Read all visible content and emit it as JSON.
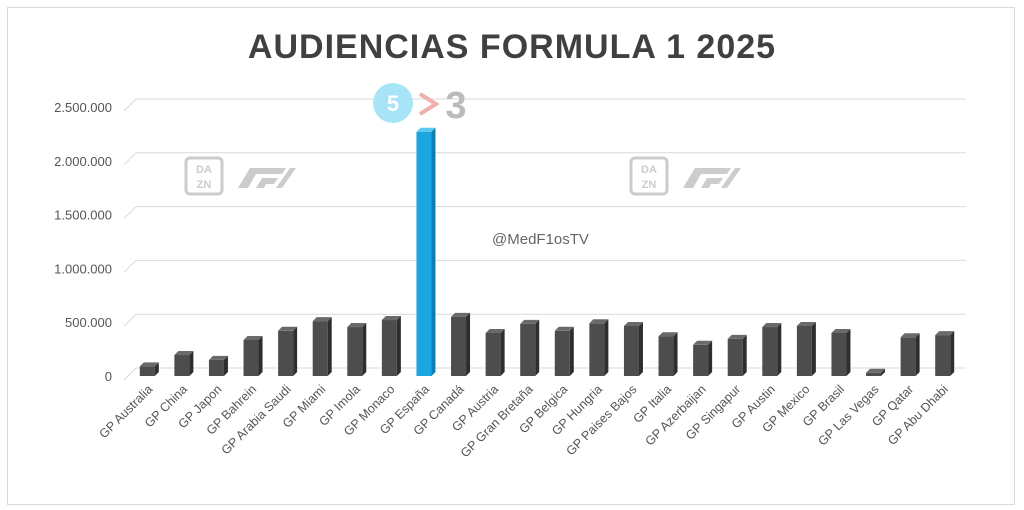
{
  "chart_data": {
    "type": "bar",
    "title": "AUDIENCIAS FORMULA 1 2025",
    "categories": [
      "GP Australia",
      "GP China",
      "GP Japon",
      "GP Bahrein",
      "GP Arabia Saudi",
      "GP Miami",
      "GP Imola",
      "GP Monaco",
      "GP España",
      "GP Canadá",
      "GP Austria",
      "GP Gran Bretaña",
      "GP Belgica",
      "GP Hungria",
      "GP Paises Bajos",
      "GP Italia",
      "GP Azerbaijan",
      "GP Singapur",
      "GP Austin",
      "GP Mexico",
      "GP Brasil",
      "GP Las Vegas",
      "GP Qatar",
      "GP Abu Dhabi"
    ],
    "values": [
      90000,
      195000,
      150000,
      335000,
      420000,
      510000,
      455000,
      520000,
      2270000,
      550000,
      400000,
      485000,
      420000,
      490000,
      465000,
      370000,
      290000,
      345000,
      455000,
      465000,
      400000,
      30000,
      360000,
      380000
    ],
    "highlight_index": 8,
    "ylim": [
      0,
      2500000
    ],
    "yticks": [
      "0",
      "500.000",
      "1.000.000",
      "1.500.000",
      "2.000.000",
      "2.500.000"
    ],
    "grid": true,
    "colors": {
      "bar": "#4d4d4d",
      "highlight": "#1aa7e0",
      "grid": "#d9d9d9"
    }
  },
  "watermark": "@MedF1osTV",
  "logos": {
    "dazn": "DAZN",
    "channel_five": "5",
    "channel_three": "3"
  }
}
